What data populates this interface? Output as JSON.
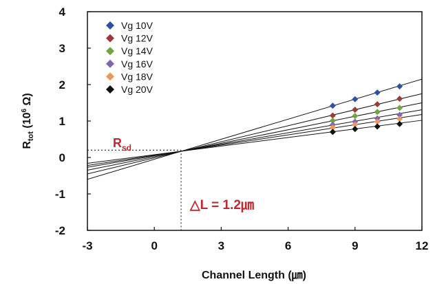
{
  "chart_data": {
    "type": "scatter",
    "xlabel": "Channel Length (㎛)",
    "ylabel_main": "R",
    "ylabel_sub": "tot",
    "ylabel_unit_open": " (10",
    "ylabel_unit_sup": "6",
    "ylabel_unit_close": " Ω)",
    "xlim": [
      -3,
      12
    ],
    "ylim": [
      -2,
      4
    ],
    "xticks": [
      "-3",
      "0",
      "3",
      "6",
      "9",
      "12"
    ],
    "xtick_values": [
      -3,
      0,
      3,
      6,
      9,
      12
    ],
    "yticks": [
      "-2",
      "-1",
      "0",
      "1",
      "2",
      "3",
      "4"
    ],
    "ytick_values": [
      -2,
      -1,
      0,
      1,
      2,
      3,
      4
    ],
    "grid": false,
    "legend_position": "top-left",
    "x": [
      8,
      9,
      10,
      11
    ],
    "series": [
      {
        "name": "Vg  10V",
        "color": "#2e52a3",
        "values": [
          1.42,
          1.6,
          1.78,
          1.95
        ]
      },
      {
        "name": "Vg  12V",
        "color": "#9c3a3a",
        "values": [
          1.15,
          1.31,
          1.46,
          1.61
        ]
      },
      {
        "name": "Vg  14V",
        "color": "#72a540",
        "values": [
          1.01,
          1.14,
          1.25,
          1.36
        ]
      },
      {
        "name": "Vg  16V",
        "color": "#7f68ad",
        "values": [
          0.9,
          0.98,
          1.07,
          1.17
        ]
      },
      {
        "name": "Vg  18V",
        "color": "#f0965c",
        "values": [
          0.82,
          0.9,
          0.98,
          1.06
        ]
      },
      {
        "name": "Vg  20V",
        "color": "#111111",
        "values": [
          0.7,
          0.78,
          0.85,
          0.92
        ]
      }
    ],
    "fit_lines": [
      {
        "y_at_xmin": -0.6,
        "y_at_xmax": 2.15
      },
      {
        "y_at_xmin": -0.45,
        "y_at_xmax": 1.75
      },
      {
        "y_at_xmin": -0.35,
        "y_at_xmax": 1.5
      },
      {
        "y_at_xmin": -0.27,
        "y_at_xmax": 1.31
      },
      {
        "y_at_xmin": -0.22,
        "y_at_xmax": 1.18
      },
      {
        "y_at_xmin": -0.16,
        "y_at_xmax": 1.02
      }
    ],
    "rsd_point": {
      "x": 1.2,
      "y": 0.2
    },
    "annotations": {
      "rsd_main": "R",
      "rsd_sub": "sd",
      "delta_l": "△L = 1.2㎛"
    }
  },
  "colors": {
    "annotation": "#c0282d",
    "axis": "#111111"
  }
}
